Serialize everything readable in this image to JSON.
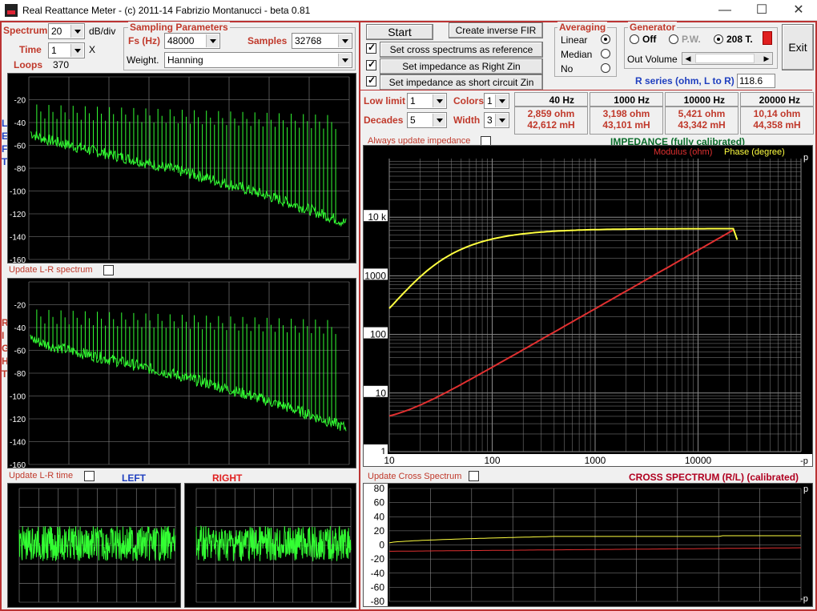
{
  "window": {
    "title": "Real Reattance Meter - (c) 2011-14 Fabrizio Montanucci - beta 0.81",
    "min": "—",
    "max": "☐",
    "close": "✕"
  },
  "left_controls": {
    "spectrum_label": "Spectrum",
    "spectrum_value": "20",
    "db_div": "dB/div",
    "time_label": "Time",
    "time_value": "1",
    "time_unit": "X",
    "loops_label": "Loops",
    "loops_value": "370"
  },
  "sampling": {
    "title": "Sampling Parameters",
    "fs_label": "Fs (Hz)",
    "fs_value": "48000",
    "samples_label": "Samples",
    "samples_value": "32768",
    "weight_label": "Weight.",
    "weight_value": "Hanning"
  },
  "left_panel": {
    "side_letters_left": [
      "L",
      "E",
      "F",
      "T"
    ],
    "side_letters_right": [
      "R",
      "I",
      "G",
      "H",
      "T"
    ],
    "yticks": [
      "-20",
      "-40",
      "-60",
      "-80",
      "-100",
      "-120",
      "-140",
      "-160"
    ],
    "update_lr_spectrum": "Update L-R spectrum",
    "update_lr_time": "Update L-R time",
    "left_label": "LEFT",
    "right_label": "RIGHT"
  },
  "top_buttons": {
    "start": "Start",
    "create_fir": "Create inverse FIR",
    "cross_ref": "Set cross spectrums as reference",
    "right_zin": "Set impedance as Right Zin",
    "short_zin": "Set impedance as short circuit Zin"
  },
  "averaging": {
    "title": "Averaging",
    "options": [
      "Linear",
      "Median",
      "No"
    ],
    "selected": "Linear"
  },
  "generator": {
    "title": "Generator",
    "options": [
      "Off",
      "P.W.",
      "208 T."
    ],
    "selected": "208 T.",
    "out_volume": "Out Volume",
    "indicator_color": "#e02020"
  },
  "exit": "Exit",
  "r_series": {
    "label": "R series (ohm, L to R)",
    "value": "118.6"
  },
  "limits": {
    "low_label": "Low limit",
    "low_value": "1",
    "decades_label": "Decades",
    "decades_value": "5",
    "colors_label": "Colors",
    "colors_value": "1",
    "width_label": "Width",
    "width_value": "3"
  },
  "readouts": [
    {
      "freq": "40",
      "unit": "Hz",
      "ohm": "2,859 ohm",
      "mh": "42,612 mH"
    },
    {
      "freq": "1000",
      "unit": "Hz",
      "ohm": "3,198 ohm",
      "mh": "43,101 mH"
    },
    {
      "freq": "10000",
      "unit": "Hz",
      "ohm": "5,421 ohm",
      "mh": "43,342 mH"
    },
    {
      "freq": "20000",
      "unit": "Hz",
      "ohm": "10,14 ohm",
      "mh": "44,358 mH"
    }
  ],
  "impedance": {
    "always_update": "Always update impedance",
    "title": "IMPEDANCE (fully calibrated)",
    "modulus_label": "Modulus (ohm)",
    "phase_label": "Phase (degree)",
    "p_top": "p",
    "p_bottom": "-p",
    "yticks": [
      "10 k",
      "1000",
      "100",
      "10",
      "1"
    ],
    "xticks": [
      "10",
      "100",
      "1000",
      "10000"
    ]
  },
  "cross": {
    "update_label": "Update Cross Spectrum",
    "title": "CROSS SPECTRUM (R/L) (calibrated)",
    "p_top": "p",
    "p_bottom": "-p",
    "yticks": [
      "80",
      "60",
      "40",
      "20",
      "0",
      "-20",
      "-40",
      "-60",
      "-80"
    ]
  },
  "colors": {
    "spectrum_trace": "#33ff33",
    "modulus_trace": "#e03030",
    "phase_trace": "#ffff40",
    "grid": "#8a8a8a"
  }
}
